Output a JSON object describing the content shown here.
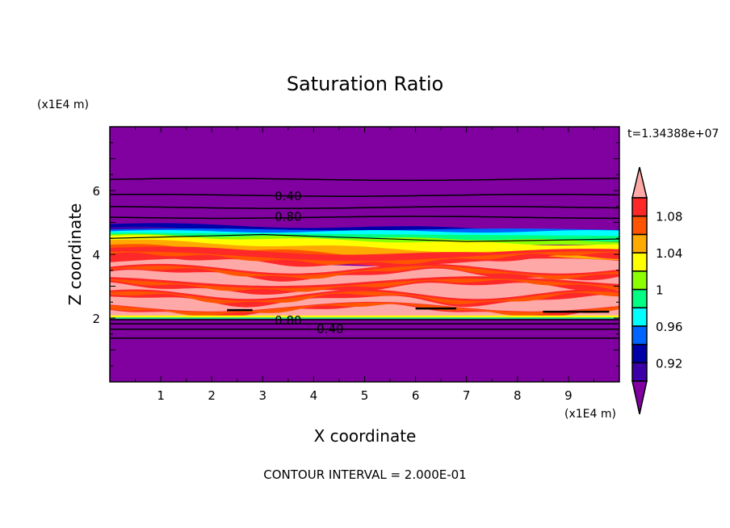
{
  "chart_data": {
    "type": "heatmap",
    "title": "Saturation Ratio",
    "xlabel": "X coordinate",
    "ylabel": "Z coordinate",
    "x_unit": "(x1E4 m)",
    "y_unit": "(x1E4 m)",
    "xlim": [
      0,
      10
    ],
    "ylim": [
      0,
      8
    ],
    "xticks": [
      1,
      2,
      3,
      4,
      5,
      6,
      7,
      8,
      9
    ],
    "yticks": [
      2,
      4,
      6
    ],
    "time_label": "t=1.34388e+07",
    "footer": "CONTOUR INTERVAL = 2.000E-01",
    "colorbar": {
      "levels": [
        0.9,
        0.92,
        0.94,
        0.96,
        0.98,
        1.0,
        1.02,
        1.04,
        1.06,
        1.08,
        1.1
      ],
      "tick_labels": [
        "0.92",
        "0.96",
        "1",
        "1.04",
        "1.08"
      ],
      "tick_values": [
        0.92,
        0.96,
        1.0,
        1.04,
        1.08
      ],
      "colors": [
        "#3c00a8",
        "#0000a8",
        "#0064ff",
        "#00ffff",
        "#00ff82",
        "#8cff00",
        "#ffff00",
        "#ffaa00",
        "#ff5500",
        "#ff2828"
      ],
      "under_color": "#8000a0",
      "over_color": "#ffa8a8",
      "extend": "both"
    },
    "contour_lines": {
      "upper_z": [
        6.35,
        5.85,
        5.47,
        5.16
      ],
      "lower_z": [
        1.95,
        1.82,
        1.65,
        1.37
      ],
      "labels": [
        {
          "text": "0.40",
          "x": 3.5,
          "z": 5.85
        },
        {
          "text": "0.80",
          "x": 3.5,
          "z": 5.2
        },
        {
          "text": "0.80",
          "x": 3.5,
          "z": 1.95
        },
        {
          "text": "0.40",
          "x": 3.5,
          "z": 1.68
        }
      ]
    },
    "grid": false
  }
}
